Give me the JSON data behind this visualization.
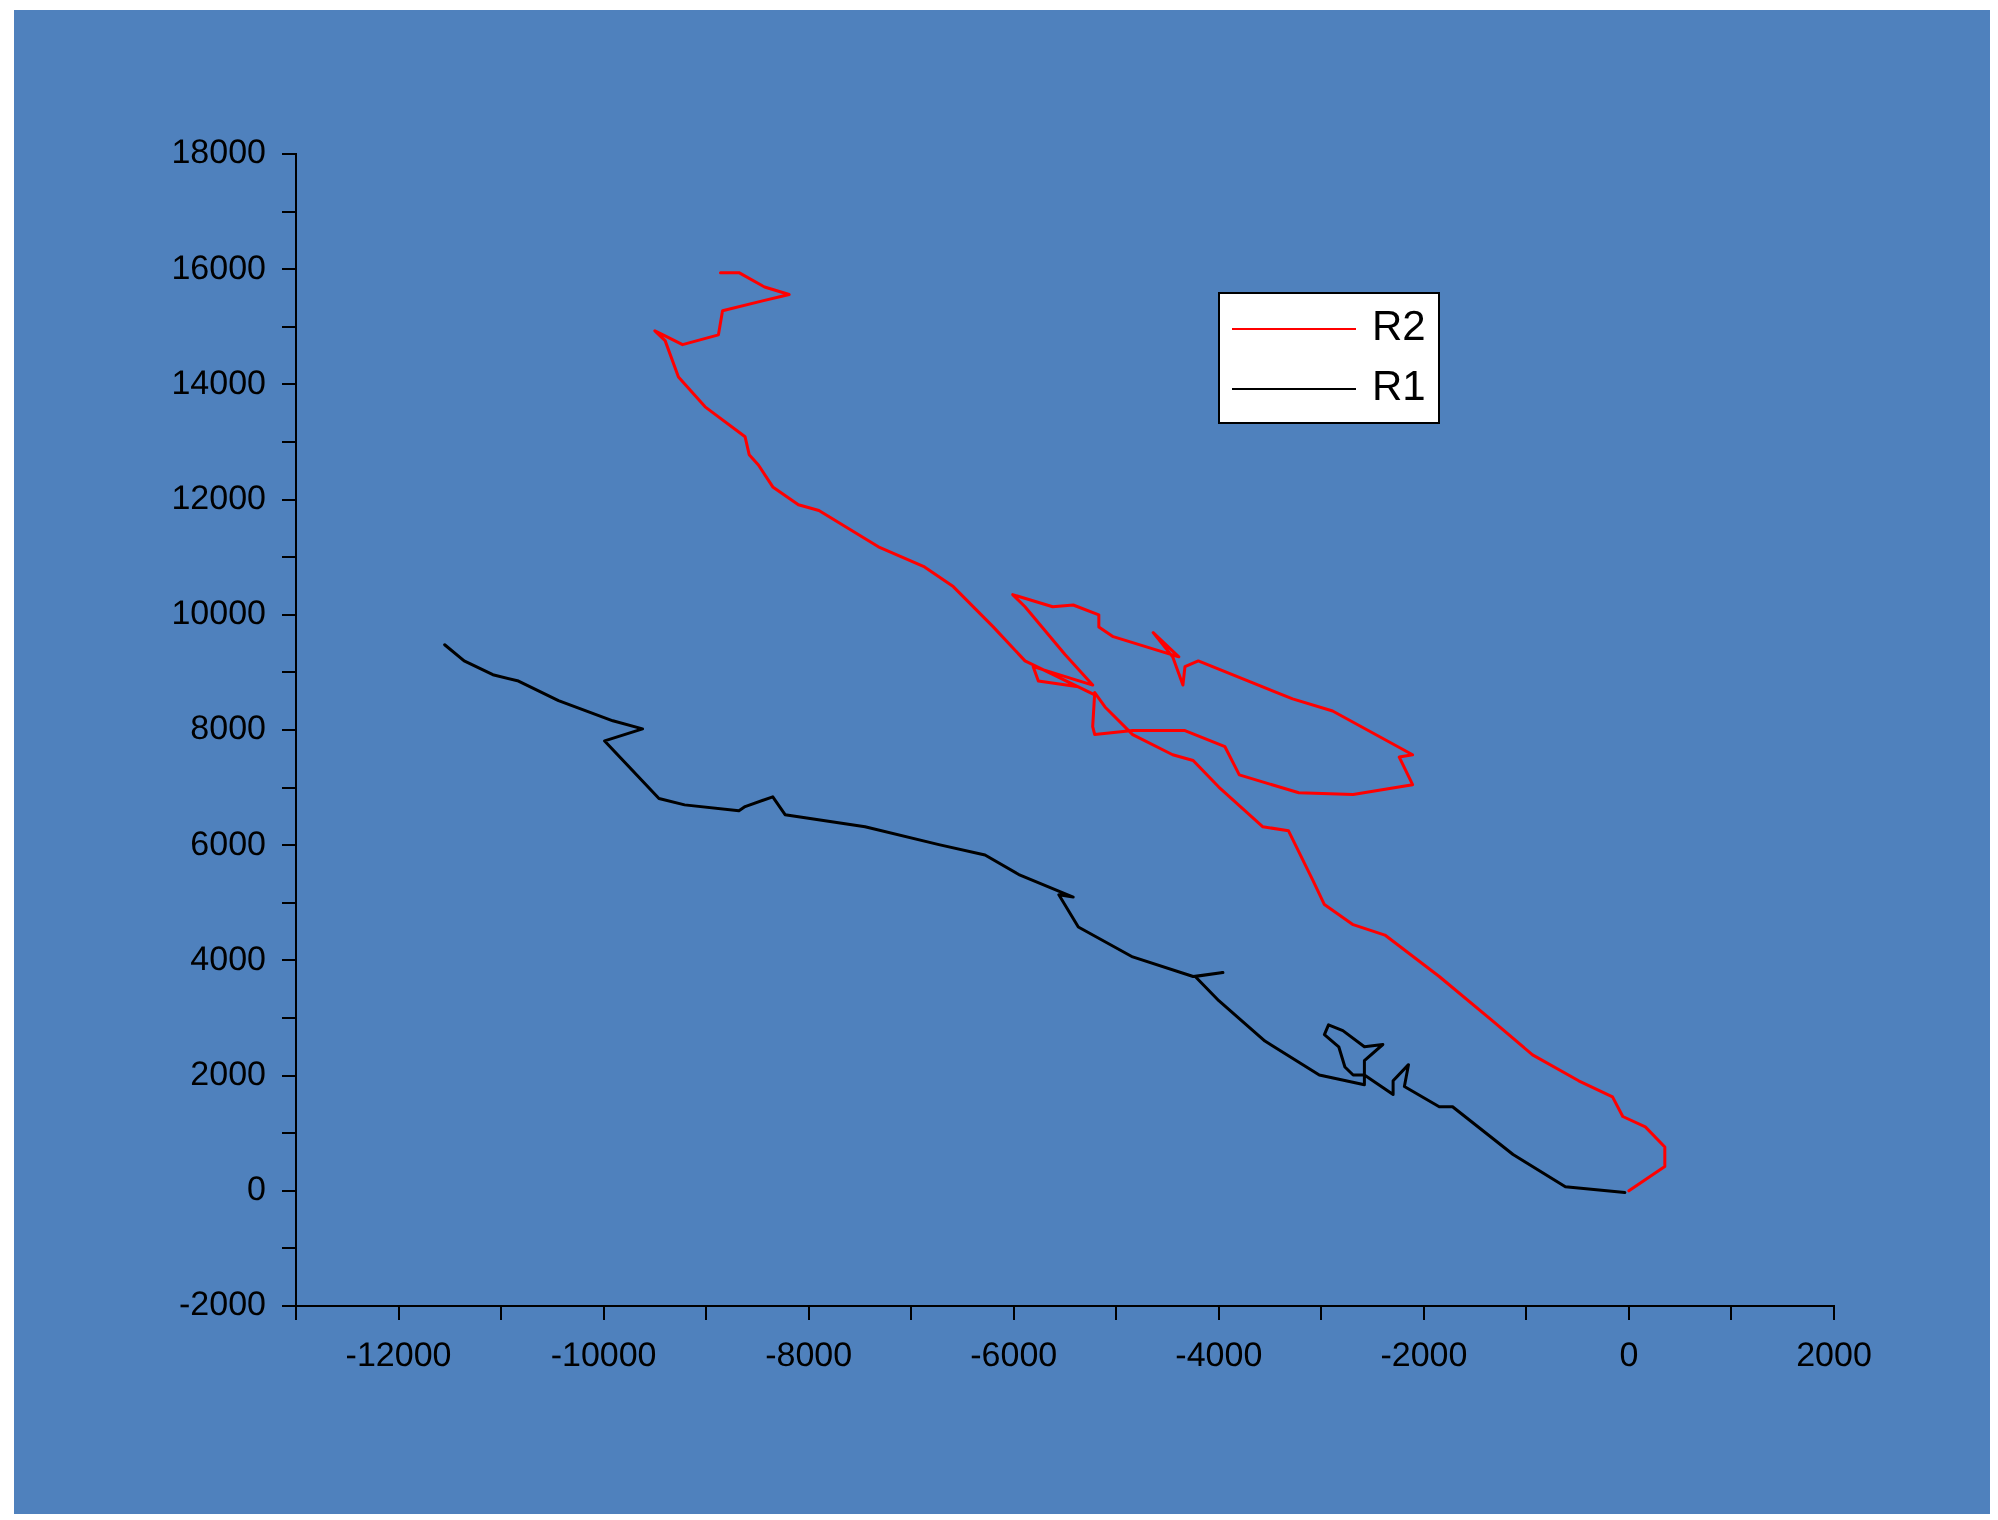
{
  "chart_data": {
    "type": "line",
    "legend": "top right",
    "grid": false,
    "marker": "none",
    "line_style": "solid",
    "xlim": [
      -13000,
      2000
    ],
    "ylim": [
      -2000,
      18000
    ],
    "xticks": [
      {
        "value": -13000,
        "label": null
      },
      -12000,
      {
        "value": -11000,
        "label": null
      },
      -10000,
      {
        "value": -9000,
        "label": null
      },
      -8000,
      {
        "value": -7000,
        "label": null
      },
      -6000,
      {
        "value": -5000,
        "label": null
      },
      -4000,
      {
        "value": -3000,
        "label": null
      },
      -2000,
      {
        "value": -1000,
        "label": null
      },
      0,
      {
        "value": 1000,
        "label": null
      },
      2000
    ],
    "yticks": [
      -2000,
      {
        "value": -1000,
        "label": null
      },
      0,
      {
        "value": 1000,
        "label": null
      },
      2000,
      {
        "value": 3000,
        "label": null
      },
      4000,
      {
        "value": 5000,
        "label": null
      },
      6000,
      {
        "value": 7000,
        "label": null
      },
      8000,
      {
        "value": 9000,
        "label": null
      },
      10000,
      {
        "value": 11000,
        "label": null
      },
      12000,
      {
        "value": 13000,
        "label": null
      },
      14000,
      {
        "value": 15000,
        "label": null
      },
      16000,
      {
        "value": 17000,
        "label": null
      },
      18000
    ],
    "series": [
      {
        "name": "R2",
        "color": "#ff0000",
        "x": [
          0,
          350,
          350,
          160,
          -60,
          -160,
          -490,
          -940,
          -1330,
          -1850,
          -2380,
          -2690,
          -2970,
          -3080,
          -3320,
          -3570,
          -4000,
          -4250,
          -4450,
          -4840,
          -5110,
          -5210,
          -5230,
          -5210,
          -4840,
          -4330,
          -3940,
          -3800,
          -3220,
          -2690,
          -2110,
          -2240,
          -2110,
          -2890,
          -3280,
          -4200,
          -4330,
          -4350,
          -4450,
          -4640,
          -4390,
          -5030,
          -5170,
          -5170,
          -5420,
          -5620,
          -6010,
          -5890,
          -5500,
          -5230,
          -5810,
          -5760,
          -5370,
          -5210,
          -5890,
          -6200,
          -6590,
          -6870,
          -7320,
          -7900,
          -8100,
          -8350,
          -8490,
          -8580,
          -8620,
          -9010,
          -9270,
          -9400,
          -9500,
          -9420,
          -9230,
          -8880,
          -8840,
          -8450,
          -8190,
          -8430,
          -8680,
          -8860
        ],
        "values": [
          0,
          420,
          760,
          1110,
          1290,
          1630,
          1910,
          2360,
          2950,
          3720,
          4440,
          4620,
          4970,
          5380,
          6250,
          6320,
          7010,
          7470,
          7570,
          7920,
          8400,
          8650,
          8060,
          7920,
          7990,
          7990,
          7710,
          7220,
          6910,
          6880,
          7050,
          7530,
          7570,
          8330,
          8540,
          9200,
          9100,
          8780,
          9270,
          9690,
          9270,
          9620,
          9790,
          10000,
          10170,
          10140,
          10350,
          10140,
          9310,
          8780,
          9100,
          8850,
          8750,
          8610,
          9200,
          9790,
          10490,
          10830,
          11180,
          11810,
          11910,
          12220,
          12600,
          12780,
          13090,
          13610,
          14130,
          14760,
          14930,
          14860,
          14690,
          14860,
          15280,
          15450,
          15560,
          15690,
          15940,
          15940
        ]
      },
      {
        "name": "R1",
        "color": "#000000",
        "x": [
          -40,
          -620,
          -1130,
          -1720,
          -1850,
          -2190,
          -2150,
          -2300,
          -2300,
          -2580,
          -2690,
          -2770,
          -2830,
          -2970,
          -2930,
          -2790,
          -2580,
          -2400,
          -2580,
          -2580,
          -3020,
          -3550,
          -4000,
          -4230,
          -3960,
          -4250,
          -4840,
          -5370,
          -5560,
          -5420,
          -5950,
          -6280,
          -6730,
          -7450,
          -8230,
          -8350,
          -8620,
          -8680,
          -9210,
          -9460,
          -9990,
          -9620,
          -9910,
          -10440,
          -10830,
          -11080,
          -11360,
          -11550
        ],
        "values": [
          -30,
          70,
          630,
          1460,
          1460,
          1810,
          2190,
          1910,
          1670,
          2010,
          2010,
          2150,
          2500,
          2710,
          2880,
          2780,
          2500,
          2540,
          2260,
          1840,
          2010,
          2600,
          3300,
          3720,
          3790,
          3720,
          4060,
          4580,
          5140,
          5100,
          5490,
          5830,
          6010,
          6320,
          6530,
          6840,
          6670,
          6600,
          6700,
          6810,
          7810,
          8020,
          8160,
          8510,
          8850,
          8960,
          9200,
          9480
        ]
      }
    ]
  }
}
